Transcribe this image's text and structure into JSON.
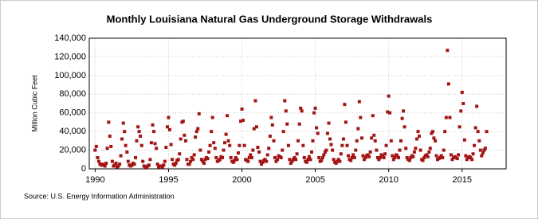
{
  "chart_data": {
    "type": "scatter",
    "title": "Monthly Louisiana Natural  Gas Underground Storage Withdrawals",
    "y_label": "Million Cubic Feet",
    "source": "Source: U.S. Energy Information Administration",
    "color": "#a31515",
    "grid": true,
    "xlim": [
      1989.6,
      2018.0
    ],
    "xticks": [
      1990,
      1995,
      2000,
      2005,
      2010,
      2015
    ],
    "ylim": [
      0,
      140000
    ],
    "yticks": [
      0,
      {
        "value": 20000,
        "label": "20,000"
      },
      {
        "value": 40000,
        "label": "40,000"
      },
      {
        "value": 60000,
        "label": "60,000"
      },
      {
        "value": 80000,
        "label": "80,000"
      },
      {
        "value": 100000,
        "label": "100,000"
      },
      {
        "value": 120000,
        "label": "120,000"
      },
      {
        "value": 140000,
        "label": "140,000"
      }
    ],
    "x": [
      1990.0,
      1990.08,
      1990.17,
      1990.25,
      1990.33,
      1990.42,
      1990.5,
      1990.58,
      1990.67,
      1990.75,
      1990.83,
      1990.92,
      1991.0,
      1991.08,
      1991.17,
      1991.25,
      1991.33,
      1991.42,
      1991.5,
      1991.58,
      1991.67,
      1991.75,
      1991.83,
      1991.92,
      1992.0,
      1992.08,
      1992.17,
      1992.25,
      1992.33,
      1992.42,
      1992.5,
      1992.58,
      1992.67,
      1992.75,
      1992.83,
      1992.92,
      1993.0,
      1993.08,
      1993.17,
      1993.25,
      1993.33,
      1993.42,
      1993.5,
      1993.58,
      1993.67,
      1993.75,
      1993.83,
      1993.92,
      1994.0,
      1994.08,
      1994.17,
      1994.25,
      1994.33,
      1994.42,
      1994.5,
      1994.58,
      1994.67,
      1994.75,
      1994.83,
      1994.92,
      1995.0,
      1995.08,
      1995.17,
      1995.25,
      1995.33,
      1995.42,
      1995.5,
      1995.58,
      1995.67,
      1995.75,
      1995.83,
      1995.92,
      1996.0,
      1996.08,
      1996.17,
      1996.25,
      1996.33,
      1996.42,
      1996.5,
      1996.58,
      1996.67,
      1996.75,
      1996.83,
      1996.92,
      1997.0,
      1997.08,
      1997.17,
      1997.25,
      1997.33,
      1997.42,
      1997.5,
      1997.58,
      1997.67,
      1997.75,
      1997.83,
      1997.92,
      1998.0,
      1998.08,
      1998.17,
      1998.25,
      1998.33,
      1998.42,
      1998.5,
      1998.58,
      1998.67,
      1998.75,
      1998.83,
      1998.92,
      1999.0,
      1999.08,
      1999.17,
      1999.25,
      1999.33,
      1999.42,
      1999.5,
      1999.58,
      1999.67,
      1999.75,
      1999.83,
      1999.92,
      2000.0,
      2000.08,
      2000.17,
      2000.25,
      2000.33,
      2000.42,
      2000.5,
      2000.58,
      2000.67,
      2000.75,
      2000.83,
      2000.92,
      2001.0,
      2001.08,
      2001.17,
      2001.25,
      2001.33,
      2001.42,
      2001.5,
      2001.58,
      2001.67,
      2001.75,
      2001.83,
      2001.92,
      2002.0,
      2002.08,
      2002.17,
      2002.25,
      2002.33,
      2002.42,
      2002.5,
      2002.58,
      2002.67,
      2002.75,
      2002.83,
      2002.92,
      2003.0,
      2003.08,
      2003.17,
      2003.25,
      2003.33,
      2003.42,
      2003.5,
      2003.58,
      2003.67,
      2003.75,
      2003.83,
      2003.92,
      2004.0,
      2004.08,
      2004.17,
      2004.25,
      2004.33,
      2004.42,
      2004.5,
      2004.58,
      2004.67,
      2004.75,
      2004.83,
      2004.92,
      2005.0,
      2005.08,
      2005.17,
      2005.25,
      2005.33,
      2005.42,
      2005.5,
      2005.58,
      2005.67,
      2005.75,
      2005.83,
      2005.92,
      2006.0,
      2006.08,
      2006.17,
      2006.25,
      2006.33,
      2006.42,
      2006.5,
      2006.58,
      2006.67,
      2006.75,
      2006.83,
      2006.92,
      2007.0,
      2007.08,
      2007.17,
      2007.25,
      2007.33,
      2007.42,
      2007.5,
      2007.58,
      2007.67,
      2007.75,
      2007.83,
      2007.92,
      2008.0,
      2008.08,
      2008.17,
      2008.25,
      2008.33,
      2008.42,
      2008.5,
      2008.58,
      2008.67,
      2008.75,
      2008.83,
      2008.92,
      2009.0,
      2009.08,
      2009.17,
      2009.25,
      2009.33,
      2009.42,
      2009.5,
      2009.58,
      2009.67,
      2009.75,
      2009.83,
      2009.92,
      2010.0,
      2010.08,
      2010.17,
      2010.25,
      2010.33,
      2010.42,
      2010.5,
      2010.58,
      2010.67,
      2010.75,
      2010.83,
      2010.92,
      2011.0,
      2011.08,
      2011.17,
      2011.25,
      2011.33,
      2011.42,
      2011.5,
      2011.58,
      2011.67,
      2011.75,
      2011.83,
      2011.92,
      2012.0,
      2012.08,
      2012.17,
      2012.25,
      2012.33,
      2012.42,
      2012.5,
      2012.58,
      2012.67,
      2012.75,
      2012.83,
      2012.92,
      2013.0,
      2013.08,
      2013.17,
      2013.25,
      2013.33,
      2013.42,
      2013.5,
      2013.58,
      2013.67,
      2013.75,
      2013.83,
      2013.92,
      2014.0,
      2014.08,
      2014.17,
      2014.25,
      2014.33,
      2014.42,
      2014.5,
      2014.58,
      2014.67,
      2014.75,
      2014.83,
      2014.92,
      2015.0,
      2015.08,
      2015.17,
      2015.25,
      2015.33,
      2015.42,
      2015.5,
      2015.58,
      2015.67,
      2015.75,
      2015.83,
      2015.92,
      2016.0,
      2016.08,
      2016.17,
      2016.25,
      2016.33,
      2016.42,
      2016.5,
      2016.58,
      2016.67
    ],
    "values": [
      20000,
      24000,
      12000,
      8000,
      5000,
      4000,
      5000,
      4000,
      3000,
      6000,
      22000,
      50000,
      35000,
      24000,
      8000,
      3000,
      4000,
      6000,
      2000,
      3000,
      5000,
      14000,
      32000,
      49000,
      40000,
      25000,
      18000,
      8000,
      4000,
      3000,
      4000,
      6000,
      5000,
      12000,
      30000,
      45000,
      40000,
      35000,
      25000,
      8000,
      3000,
      1000,
      2000,
      3000,
      4000,
      10000,
      28000,
      47000,
      40000,
      27000,
      22000,
      5000,
      2000,
      3000,
      3000,
      2000,
      4000,
      8000,
      23000,
      45000,
      55000,
      42000,
      26000,
      10000,
      5000,
      4000,
      6000,
      9000,
      10000,
      16000,
      32000,
      50000,
      51000,
      36000,
      30000,
      10000,
      5000,
      5000,
      8000,
      12000,
      10000,
      15000,
      34000,
      40000,
      43000,
      59000,
      20000,
      10000,
      8000,
      6000,
      10000,
      12000,
      11000,
      18000,
      25000,
      40000,
      55000,
      28000,
      22000,
      12000,
      8000,
      9000,
      10000,
      13000,
      12000,
      20000,
      28000,
      37000,
      57000,
      30000,
      25000,
      12000,
      8000,
      7000,
      9000,
      12000,
      10000,
      17000,
      25000,
      51000,
      64000,
      52000,
      25000,
      10000,
      9000,
      8000,
      12000,
      15000,
      12000,
      20000,
      43000,
      73000,
      45000,
      23000,
      18000,
      8000,
      5000,
      7000,
      9000,
      10000,
      8000,
      15000,
      22000,
      35000,
      55000,
      47000,
      30000,
      12000,
      8000,
      10000,
      14000,
      13000,
      12000,
      20000,
      40000,
      73000,
      62000,
      48000,
      25000,
      10000,
      6000,
      8000,
      10000,
      12000,
      10000,
      16000,
      30000,
      48000,
      65000,
      62000,
      25000,
      12000,
      8000,
      7000,
      10000,
      13000,
      10000,
      18000,
      30000,
      60000,
      65000,
      44000,
      38000,
      12000,
      8000,
      9000,
      12000,
      15000,
      18000,
      20000,
      38000,
      49000,
      32000,
      26000,
      20000,
      10000,
      7000,
      6000,
      8000,
      10000,
      8000,
      16000,
      25000,
      32000,
      69000,
      50000,
      25000,
      14000,
      10000,
      9000,
      12000,
      15000,
      12000,
      20000,
      30000,
      43000,
      72000,
      55000,
      33000,
      14000,
      10000,
      12000,
      14000,
      15000,
      13000,
      18000,
      33000,
      57000,
      36000,
      30000,
      20000,
      12000,
      10000,
      12000,
      15000,
      14000,
      12000,
      16000,
      25000,
      61000,
      78000,
      60000,
      30000,
      14000,
      10000,
      12000,
      15000,
      14000,
      12000,
      20000,
      30000,
      54000,
      62000,
      45000,
      22000,
      12000,
      10000,
      9000,
      12000,
      14000,
      13000,
      18000,
      22000,
      32000,
      40000,
      35000,
      20000,
      10000,
      9000,
      12000,
      14000,
      15000,
      13000,
      18000,
      22000,
      38000,
      40000,
      33000,
      30000,
      14000,
      10000,
      11000,
      12000,
      14000,
      12000,
      20000,
      40000,
      55000,
      127000,
      91000,
      55000,
      15000,
      10000,
      12000,
      13000,
      12000,
      11000,
      15000,
      45000,
      62000,
      82000,
      70000,
      31000,
      14000,
      10000,
      12000,
      13000,
      12000,
      10000,
      16000,
      25000,
      44000,
      67000,
      40000,
      30000,
      20000,
      14000,
      17000,
      20000,
      22000,
      40000
    ]
  }
}
